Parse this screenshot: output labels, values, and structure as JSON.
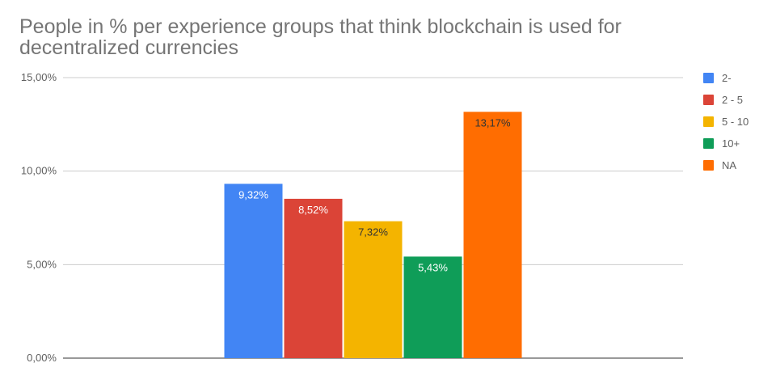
{
  "chart_data": {
    "type": "bar",
    "title": "People in % per experience groups that think blockchain is used for decentralized currencies",
    "xlabel": "",
    "ylabel": "",
    "ylim": [
      0,
      15
    ],
    "y_ticks": [
      0,
      5,
      10,
      15
    ],
    "y_tick_labels": [
      "0,00%",
      "5,00%",
      "10,00%",
      "15,00%"
    ],
    "grid": true,
    "legend_position": "right",
    "series": [
      {
        "name": "2-",
        "value": 9.32,
        "label": "9,32%",
        "color": "#4285f4",
        "label_color": "#ffffff"
      },
      {
        "name": "2 - 5",
        "value": 8.52,
        "label": "8,52%",
        "color": "#db4437",
        "label_color": "#ffffff"
      },
      {
        "name": "5 - 10",
        "value": 7.32,
        "label": "7,32%",
        "color": "#f4b400",
        "label_color": "#333333"
      },
      {
        "name": "10+",
        "value": 5.43,
        "label": "5,43%",
        "color": "#0f9d58",
        "label_color": "#ffffff"
      },
      {
        "name": "NA",
        "value": 13.17,
        "label": "13,17%",
        "color": "#ff6d01",
        "label_color": "#333333"
      }
    ]
  }
}
